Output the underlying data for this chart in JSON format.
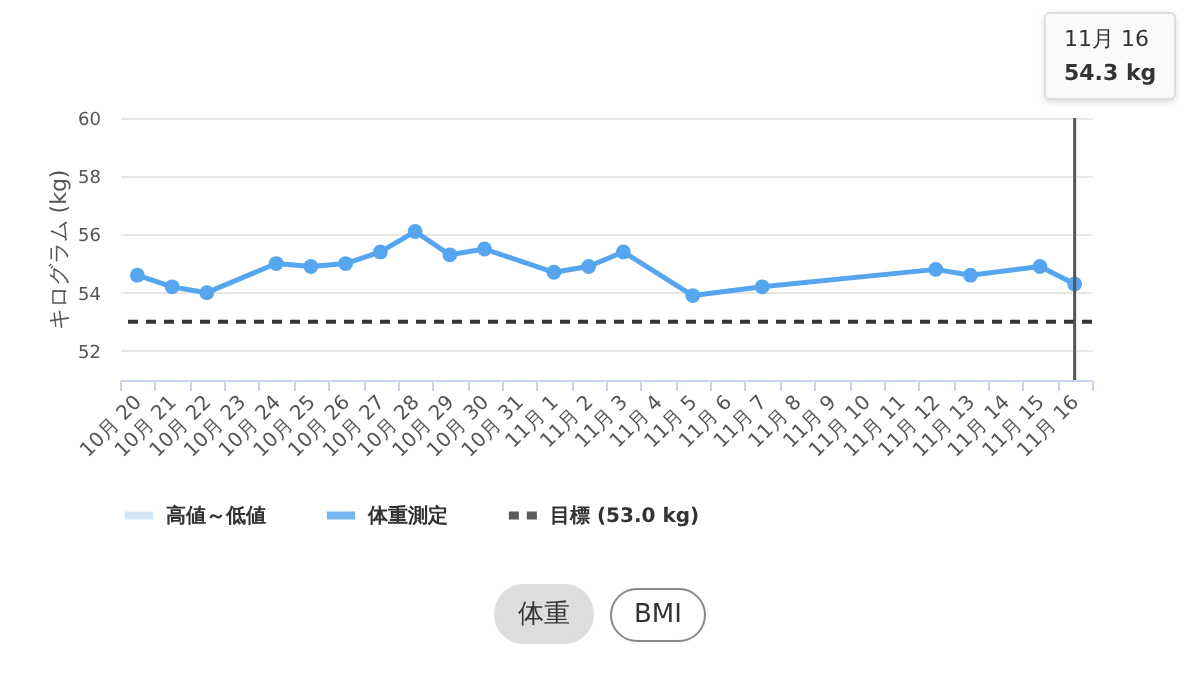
{
  "chart_data": {
    "type": "line",
    "ylabel": "キログラム (kg)",
    "categories": [
      "10月 20",
      "10月 21",
      "10月 22",
      "10月 23",
      "10月 24",
      "10月 25",
      "10月 26",
      "10月 27",
      "10月 28",
      "10月 29",
      "10月 30",
      "10月 31",
      "11月 1",
      "11月 2",
      "11月 3",
      "11月 4",
      "11月 5",
      "11月 6",
      "11月 7",
      "11月 8",
      "11月 9",
      "11月 10",
      "11月 11",
      "11月 12",
      "11月 13",
      "11月 14",
      "11月 15",
      "11月 16"
    ],
    "series": [
      {
        "name": "高値～低値",
        "type": "area",
        "color": "#c9e2f8",
        "values": [
          null,
          null,
          null,
          null,
          null,
          null,
          null,
          null,
          null,
          null,
          null,
          null,
          null,
          null,
          null,
          null,
          null,
          null,
          null,
          null,
          null,
          null,
          null,
          null,
          null,
          null,
          null,
          null
        ]
      },
      {
        "name": "体重測定",
        "color": "#55a6ee",
        "values": [
          54.6,
          54.2,
          54.0,
          null,
          55.0,
          54.9,
          55.0,
          55.4,
          56.1,
          55.3,
          55.5,
          null,
          54.7,
          54.9,
          55.4,
          null,
          53.9,
          null,
          54.2,
          null,
          null,
          null,
          null,
          54.8,
          54.6,
          null,
          54.9,
          54.3
        ]
      }
    ],
    "ylim": [
      51,
      60
    ],
    "yticks": [
      52,
      54,
      56,
      58,
      60
    ],
    "grid": "y",
    "marker": "circle",
    "legend": "bottom",
    "ref_lines": [
      {
        "axis": "y",
        "value": 53.0,
        "label": "目標 (53.0 kg)",
        "color": "#333333",
        "line_style": "dashed"
      },
      {
        "axis": "x",
        "value": "11月 16",
        "color": "#555555",
        "line_style": "solid"
      }
    ],
    "annotations": [
      "11月 16\n54.3 kg",
      "体重",
      "BMI"
    ]
  }
}
